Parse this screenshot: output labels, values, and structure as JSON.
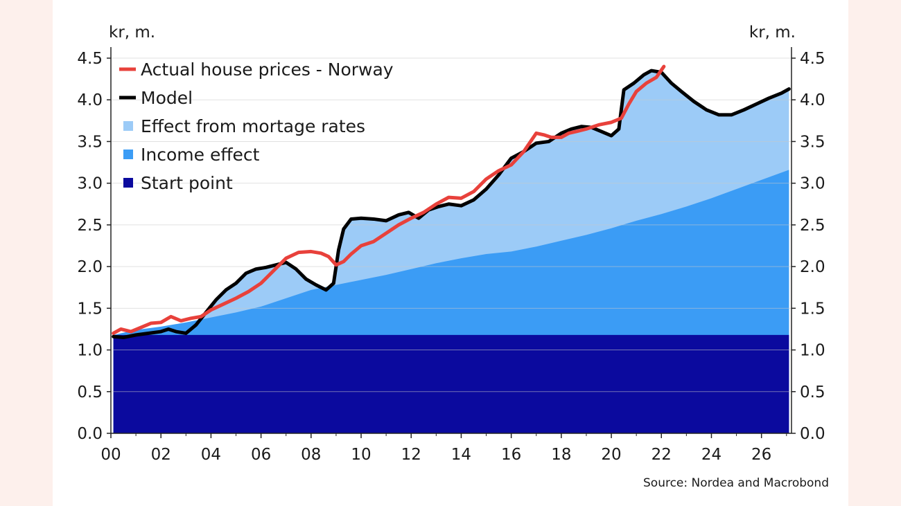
{
  "chart_data": {
    "type": "area",
    "units_left": "kr, m.",
    "units_right": "kr, m.",
    "source": "Source: Nordea and Macrobond",
    "ylim": [
      0,
      4.5
    ],
    "xlim": [
      2000,
      2027.2
    ],
    "y_ticks": [
      "0.0",
      "0.5",
      "1.0",
      "1.5",
      "2.0",
      "2.5",
      "3.0",
      "3.5",
      "4.0",
      "4.5"
    ],
    "y_tick_values": [
      0,
      0.5,
      1.0,
      1.5,
      2.0,
      2.5,
      3.0,
      3.5,
      4.0,
      4.5
    ],
    "x_ticks": [
      "00",
      "02",
      "04",
      "06",
      "08",
      "10",
      "12",
      "14",
      "16",
      "18",
      "20",
      "22",
      "24",
      "26"
    ],
    "x_tick_values": [
      2000,
      2002,
      2004,
      2006,
      2008,
      2010,
      2012,
      2014,
      2016,
      2018,
      2020,
      2022,
      2024,
      2026
    ],
    "legend_position": "top-left",
    "grid": true,
    "series": [
      {
        "name": "Actual house prices - Norway",
        "kind": "line",
        "color": "#e8413b",
        "x": [
          2000.1,
          2000.4,
          2000.8,
          2001.2,
          2001.6,
          2002.0,
          2002.4,
          2002.8,
          2003.2,
          2003.6,
          2004.0,
          2004.5,
          2005.0,
          2005.5,
          2006.0,
          2006.5,
          2007.0,
          2007.5,
          2008.0,
          2008.4,
          2008.7,
          2009.0,
          2009.3,
          2009.6,
          2010.0,
          2010.5,
          2011.0,
          2011.5,
          2012.0,
          2012.5,
          2013.0,
          2013.5,
          2014.0,
          2014.5,
          2015.0,
          2015.5,
          2016.0,
          2016.5,
          2017.0,
          2017.3,
          2017.6,
          2018.0,
          2018.3,
          2018.6,
          2019.0,
          2019.5,
          2020.0,
          2020.4,
          2020.7,
          2021.0,
          2021.4,
          2021.8,
          2022.1
        ],
        "values": [
          1.2,
          1.25,
          1.22,
          1.27,
          1.32,
          1.33,
          1.4,
          1.35,
          1.38,
          1.4,
          1.48,
          1.55,
          1.62,
          1.7,
          1.8,
          1.95,
          2.1,
          2.17,
          2.18,
          2.16,
          2.12,
          2.02,
          2.06,
          2.15,
          2.25,
          2.3,
          2.4,
          2.5,
          2.58,
          2.65,
          2.75,
          2.83,
          2.82,
          2.9,
          3.05,
          3.15,
          3.22,
          3.38,
          3.6,
          3.58,
          3.55,
          3.55,
          3.6,
          3.62,
          3.65,
          3.7,
          3.73,
          3.78,
          3.95,
          4.1,
          4.2,
          4.27,
          4.4
        ]
      },
      {
        "name": "Model",
        "kind": "line",
        "color": "#000000",
        "x": [
          2000.1,
          2000.5,
          2001.0,
          2001.5,
          2002.0,
          2002.3,
          2002.6,
          2003.0,
          2003.4,
          2003.8,
          2004.2,
          2004.6,
          2005.0,
          2005.4,
          2005.8,
          2006.2,
          2006.6,
          2007.0,
          2007.4,
          2007.8,
          2008.2,
          2008.6,
          2008.9,
          2009.1,
          2009.3,
          2009.6,
          2010.0,
          2010.5,
          2011.0,
          2011.5,
          2011.9,
          2012.3,
          2012.7,
          2013.1,
          2013.5,
          2014.0,
          2014.5,
          2015.0,
          2015.5,
          2016.0,
          2016.5,
          2017.0,
          2017.5,
          2018.0,
          2018.4,
          2018.8,
          2019.2,
          2019.6,
          2020.0,
          2020.3,
          2020.5,
          2020.9,
          2021.3,
          2021.6,
          2022.0,
          2022.4,
          2022.8,
          2023.3,
          2023.8,
          2024.3,
          2024.8,
          2025.3,
          2025.8,
          2026.3,
          2026.8,
          2027.1
        ],
        "values": [
          1.16,
          1.15,
          1.18,
          1.2,
          1.22,
          1.25,
          1.22,
          1.2,
          1.3,
          1.45,
          1.6,
          1.72,
          1.8,
          1.92,
          1.97,
          1.99,
          2.02,
          2.05,
          1.97,
          1.85,
          1.78,
          1.72,
          1.8,
          2.2,
          2.45,
          2.57,
          2.58,
          2.57,
          2.55,
          2.62,
          2.65,
          2.58,
          2.68,
          2.72,
          2.75,
          2.73,
          2.8,
          2.93,
          3.1,
          3.3,
          3.38,
          3.48,
          3.5,
          3.6,
          3.65,
          3.68,
          3.67,
          3.62,
          3.57,
          3.65,
          4.12,
          4.2,
          4.3,
          4.35,
          4.33,
          4.2,
          4.1,
          3.98,
          3.88,
          3.82,
          3.82,
          3.88,
          3.95,
          4.02,
          4.08,
          4.13
        ]
      },
      {
        "name": "Effect from mortage rates",
        "kind": "area",
        "color": "#9ccbf7"
      },
      {
        "name": "Income effect",
        "kind": "area",
        "color": "#3b9cf5",
        "x": [
          2000.1,
          2001.0,
          2002.0,
          2003.0,
          2004.0,
          2005.0,
          2006.0,
          2007.0,
          2008.0,
          2009.0,
          2010.0,
          2011.0,
          2012.0,
          2013.0,
          2014.0,
          2015.0,
          2016.0,
          2017.0,
          2018.0,
          2019.0,
          2020.0,
          2021.0,
          2022.0,
          2023.0,
          2024.0,
          2025.0,
          2026.0,
          2027.1
        ],
        "values": [
          1.18,
          1.24,
          1.28,
          1.33,
          1.39,
          1.45,
          1.52,
          1.62,
          1.72,
          1.78,
          1.84,
          1.9,
          1.97,
          2.04,
          2.1,
          2.15,
          2.18,
          2.24,
          2.31,
          2.38,
          2.46,
          2.55,
          2.63,
          2.72,
          2.82,
          2.93,
          3.04,
          3.16
        ]
      },
      {
        "name": "Start point",
        "kind": "area",
        "color": "#0b0a9e",
        "value": 1.18
      }
    ]
  }
}
